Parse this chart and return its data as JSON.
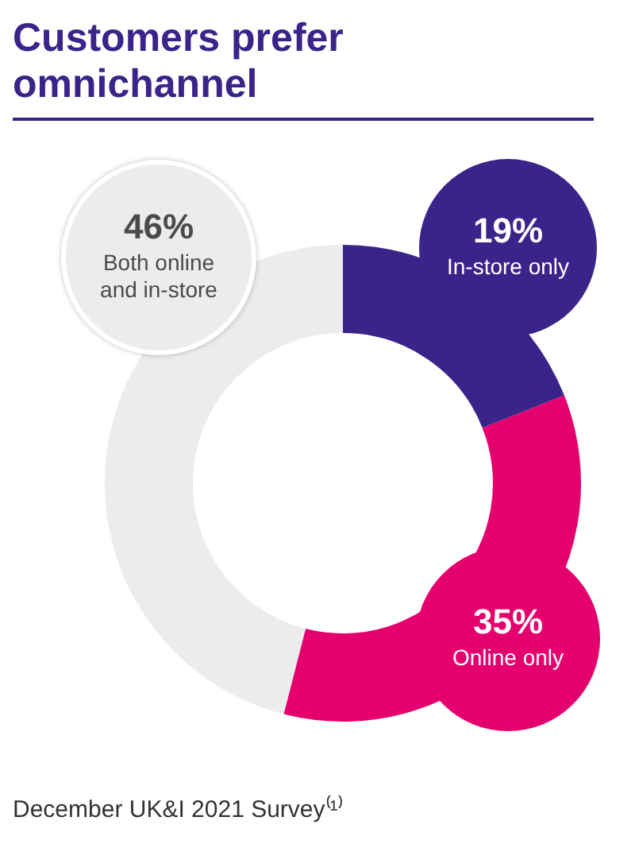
{
  "chart_data": {
    "type": "donut",
    "title": "Customers prefer omnichannel",
    "categories": [
      "In-store only",
      "Online only",
      "Both online and in-store"
    ],
    "values": [
      19,
      35,
      46
    ],
    "colors": [
      "#3b2489",
      "#e4006d",
      "#ececec"
    ],
    "value_labels": [
      "19%",
      "35%",
      "46%"
    ],
    "annotations": [
      "December UK&I 2021 Survey⁽¹⁾"
    ]
  }
}
